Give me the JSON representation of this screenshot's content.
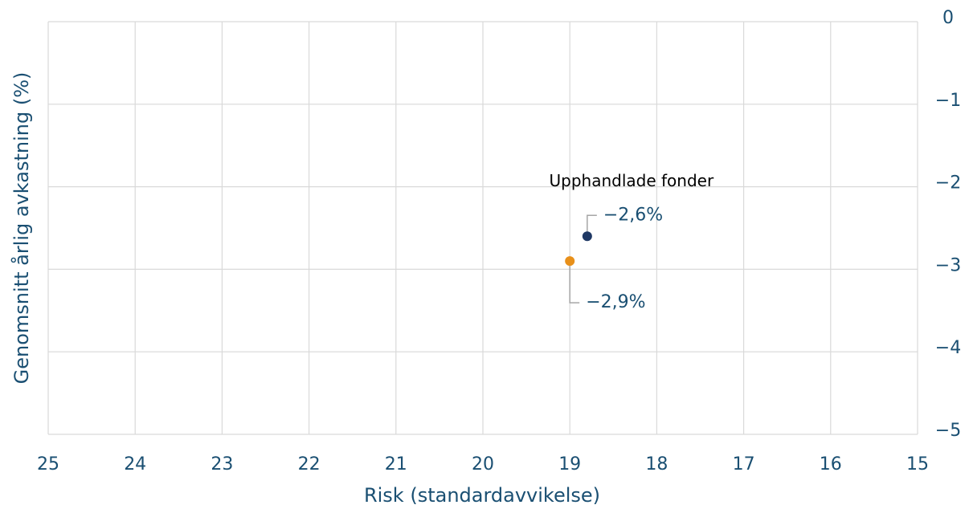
{
  "chart_data": {
    "type": "scatter",
    "xlabel": "Risk (standardavvikelse)",
    "ylabel": "Genomsnitt årlig avkastning (%)",
    "annotation": "Upphandlade fonder",
    "series": [
      {
        "name": "Upphandlade fonder",
        "color": "#1f3864",
        "x": [
          18.8
        ],
        "values": [
          -2.6
        ],
        "value_labels": [
          "−2,6%"
        ]
      },
      {
        "color": "#e8901a",
        "x": [
          19.0
        ],
        "values": [
          -2.9
        ],
        "value_labels": [
          "−2,9%"
        ]
      }
    ],
    "xlim": [
      25,
      15
    ],
    "xticks": [
      25,
      24,
      23,
      22,
      21,
      20,
      19,
      18,
      17,
      16,
      15
    ],
    "ylim": [
      -5,
      0
    ],
    "yticks": [
      0,
      {
        "value": -1,
        "label": "−1"
      },
      {
        "value": -2,
        "label": "−2"
      },
      {
        "value": -3,
        "label": "−3"
      },
      {
        "value": -4,
        "label": "−4"
      },
      {
        "value": -5,
        "label": "−5"
      }
    ],
    "grid": true
  }
}
